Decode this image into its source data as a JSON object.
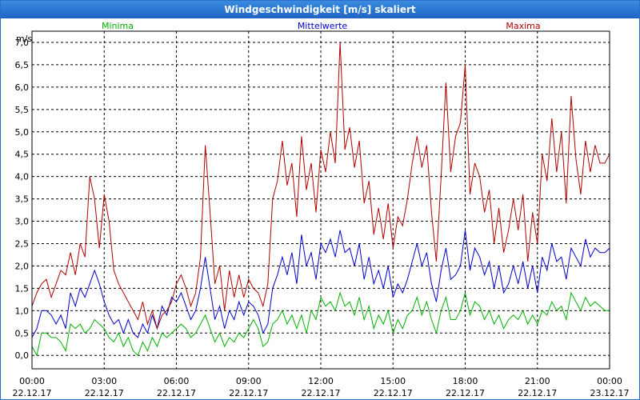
{
  "window": {
    "title": "Windgeschwindigkeit [m/s] skaliert"
  },
  "chart_data": {
    "type": "line",
    "title": "Windgeschwindigkeit [m/s] skaliert",
    "ylabel": "m/s",
    "ylim": [
      -0.3,
      7.25
    ],
    "yticks": [
      "0,0",
      "0,5",
      "1,0",
      "1,5",
      "2,0",
      "2,5",
      "3,0",
      "3,5",
      "4,0",
      "4,5",
      "5,0",
      "5,5",
      "6,0",
      "6,5",
      "7,0"
    ],
    "xticks": [
      {
        "time": "00:00",
        "date": "22.12.17"
      },
      {
        "time": "03:00",
        "date": "22.12.17"
      },
      {
        "time": "06:00",
        "date": "22.12.17"
      },
      {
        "time": "09:00",
        "date": "22.12.17"
      },
      {
        "time": "12:00",
        "date": "22.12.17"
      },
      {
        "time": "15:00",
        "date": "22.12.17"
      },
      {
        "time": "18:00",
        "date": "22.12.17"
      },
      {
        "time": "21:00",
        "date": "22.12.17"
      },
      {
        "time": "00:00",
        "date": "23.12.17"
      }
    ],
    "x_hours": [
      0,
      0.2,
      0.4,
      0.6,
      0.8,
      1,
      1.2,
      1.4,
      1.6,
      1.8,
      2,
      2.2,
      2.4,
      2.6,
      2.8,
      3,
      3.2,
      3.4,
      3.6,
      3.8,
      4,
      4.2,
      4.4,
      4.6,
      4.8,
      5,
      5.2,
      5.4,
      5.6,
      5.8,
      6,
      6.2,
      6.4,
      6.6,
      6.8,
      7,
      7.2,
      7.4,
      7.6,
      7.8,
      8,
      8.2,
      8.4,
      8.6,
      8.8,
      9,
      9.2,
      9.4,
      9.6,
      9.8,
      10,
      10.2,
      10.4,
      10.6,
      10.8,
      11,
      11.2,
      11.4,
      11.6,
      11.8,
      12,
      12.2,
      12.4,
      12.6,
      12.8,
      13,
      13.2,
      13.4,
      13.6,
      13.8,
      14,
      14.2,
      14.4,
      14.6,
      14.8,
      15,
      15.2,
      15.4,
      15.6,
      15.8,
      16,
      16.2,
      16.4,
      16.6,
      16.8,
      17,
      17.2,
      17.4,
      17.6,
      17.8,
      18,
      18.2,
      18.4,
      18.6,
      18.8,
      19,
      19.2,
      19.4,
      19.6,
      19.8,
      20,
      20.2,
      20.4,
      20.6,
      20.8,
      21,
      21.2,
      21.4,
      21.6,
      21.8,
      22,
      22.2,
      22.4,
      22.6,
      22.8,
      23,
      23.2,
      23.4,
      23.6,
      23.8,
      24
    ],
    "series": [
      {
        "name": "Minima",
        "color": "#00b000",
        "values": [
          0.2,
          0.0,
          0.5,
          0.5,
          0.4,
          0.4,
          0.3,
          0.1,
          0.7,
          0.6,
          0.7,
          0.5,
          0.6,
          0.8,
          0.7,
          0.6,
          0.4,
          0.3,
          0.5,
          0.2,
          0.4,
          0.1,
          0.0,
          0.3,
          0.1,
          0.4,
          0.2,
          0.5,
          0.4,
          0.5,
          0.6,
          0.7,
          0.6,
          0.4,
          0.5,
          0.7,
          0.9,
          0.6,
          0.3,
          0.5,
          0.2,
          0.4,
          0.3,
          0.5,
          0.4,
          0.6,
          0.8,
          0.6,
          0.2,
          0.3,
          0.7,
          0.8,
          1.0,
          0.7,
          0.9,
          0.6,
          0.9,
          0.5,
          1.0,
          0.8,
          1.3,
          1.1,
          1.2,
          1.0,
          1.4,
          1.1,
          1.2,
          0.9,
          1.3,
          0.8,
          1.1,
          0.6,
          0.9,
          0.7,
          1.0,
          0.5,
          0.8,
          0.6,
          0.9,
          1.0,
          1.3,
          0.9,
          1.2,
          0.8,
          0.5,
          1.0,
          1.3,
          0.8,
          0.8,
          1.0,
          1.4,
          0.9,
          1.2,
          1.1,
          0.8,
          1.0,
          0.7,
          0.9,
          0.6,
          0.8,
          0.9,
          0.8,
          1.0,
          0.7,
          0.9,
          0.7,
          1.0,
          0.9,
          1.2,
          1.0,
          1.1,
          0.8,
          1.4,
          1.2,
          1.0,
          1.3,
          1.1,
          1.2,
          1.1,
          1.0,
          1.0
        ]
      },
      {
        "name": "Mittelwerte",
        "color": "#0000c8",
        "values": [
          0.4,
          0.6,
          1.0,
          1.0,
          0.9,
          0.7,
          0.9,
          0.6,
          1.4,
          1.1,
          1.5,
          1.3,
          1.6,
          1.9,
          1.6,
          1.2,
          0.9,
          0.7,
          0.8,
          0.5,
          0.8,
          0.5,
          0.4,
          0.7,
          0.5,
          0.9,
          0.6,
          1.1,
          0.9,
          1.3,
          1.2,
          1.4,
          1.1,
          0.8,
          1.0,
          1.5,
          2.2,
          1.5,
          0.8,
          1.1,
          0.6,
          1.0,
          0.8,
          1.2,
          0.9,
          1.2,
          1.1,
          0.9,
          0.5,
          0.7,
          1.5,
          1.8,
          2.2,
          1.8,
          2.3,
          1.6,
          2.7,
          2.0,
          2.3,
          1.7,
          2.5,
          2.3,
          2.6,
          2.2,
          2.8,
          2.3,
          2.4,
          2.0,
          2.5,
          1.7,
          2.2,
          1.6,
          1.9,
          1.5,
          2.0,
          1.3,
          1.6,
          1.4,
          1.7,
          2.1,
          2.5,
          2.0,
          2.3,
          1.6,
          1.2,
          1.9,
          2.4,
          1.7,
          1.8,
          2.0,
          2.8,
          1.9,
          2.4,
          2.2,
          1.8,
          2.1,
          1.5,
          2.0,
          1.4,
          1.6,
          2.0,
          1.6,
          2.1,
          1.5,
          2.0,
          1.4,
          2.2,
          1.9,
          2.5,
          2.1,
          2.2,
          1.7,
          2.4,
          2.2,
          2.0,
          2.6,
          2.2,
          2.4,
          2.3,
          2.3,
          2.4
        ]
      },
      {
        "name": "Maxima",
        "color": "#b00000",
        "values": [
          1.1,
          1.4,
          1.6,
          1.7,
          1.3,
          1.6,
          1.9,
          1.8,
          2.3,
          1.8,
          2.5,
          2.2,
          4.0,
          3.5,
          2.4,
          3.6,
          3.0,
          1.9,
          1.6,
          1.4,
          1.2,
          1.0,
          0.8,
          1.2,
          0.7,
          1.0,
          0.6,
          0.9,
          1.0,
          1.2,
          1.6,
          1.8,
          1.5,
          1.1,
          1.4,
          2.2,
          4.7,
          3.2,
          1.6,
          2.0,
          1.0,
          1.9,
          1.3,
          1.8,
          1.3,
          1.7,
          1.5,
          1.4,
          1.1,
          1.6,
          3.5,
          3.9,
          4.8,
          3.8,
          4.3,
          3.1,
          4.9,
          3.7,
          4.3,
          3.2,
          4.6,
          4.1,
          5.0,
          4.3,
          7.0,
          4.6,
          5.1,
          4.2,
          4.8,
          3.4,
          3.9,
          2.7,
          3.3,
          2.6,
          3.4,
          2.4,
          3.1,
          2.9,
          3.5,
          4.3,
          4.9,
          4.2,
          4.7,
          3.2,
          2.1,
          4.0,
          6.1,
          4.1,
          4.9,
          5.2,
          6.5,
          3.6,
          4.3,
          4.0,
          3.2,
          3.7,
          2.5,
          3.3,
          2.3,
          2.8,
          3.5,
          2.8,
          3.6,
          2.1,
          3.2,
          2.5,
          4.5,
          3.9,
          5.3,
          4.1,
          5.0,
          3.4,
          5.8,
          4.4,
          3.6,
          4.8,
          4.1,
          4.7,
          4.3,
          4.3,
          4.5
        ]
      }
    ]
  }
}
